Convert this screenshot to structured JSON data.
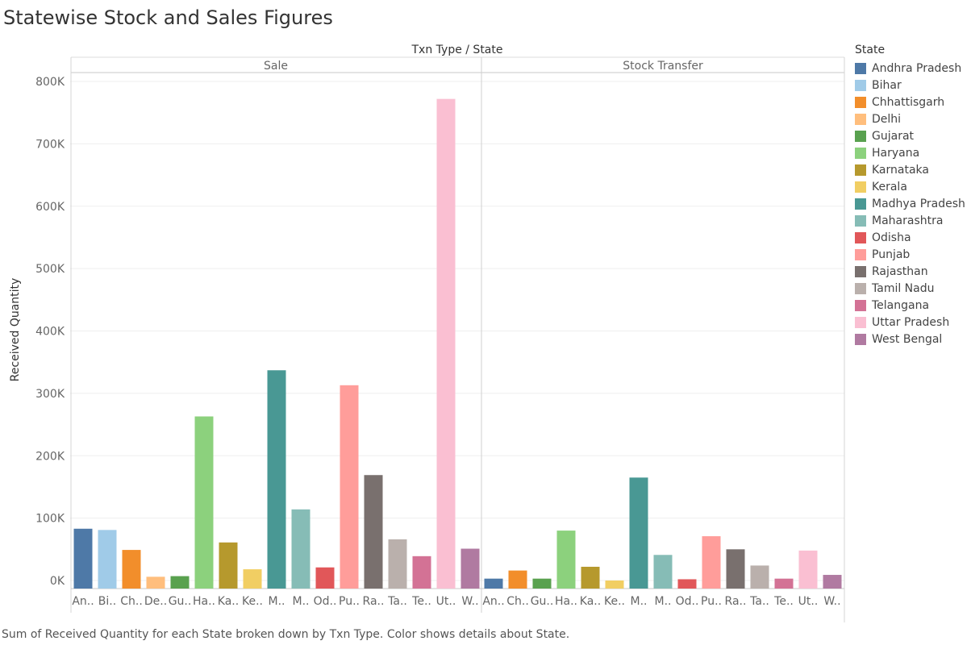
{
  "title": "Statewise Stock and Sales Figures",
  "caption": "Sum of Received Quantity for each State broken down by Txn Type.  Color shows details about State.",
  "legend": {
    "title": "State",
    "items": [
      {
        "label": "Andhra Pradesh",
        "color": "#4e79a7"
      },
      {
        "label": "Bihar",
        "color": "#a0cbe8"
      },
      {
        "label": "Chhattisgarh",
        "color": "#f28e2b"
      },
      {
        "label": "Delhi",
        "color": "#ffbe7d"
      },
      {
        "label": "Gujarat",
        "color": "#59a14f"
      },
      {
        "label": "Haryana",
        "color": "#8cd17d"
      },
      {
        "label": "Karnataka",
        "color": "#b6992d"
      },
      {
        "label": "Kerala",
        "color": "#f1ce63"
      },
      {
        "label": "Madhya Pradesh",
        "color": "#499894"
      },
      {
        "label": "Maharashtra",
        "color": "#86bcb6"
      },
      {
        "label": "Odisha",
        "color": "#e15759"
      },
      {
        "label": "Punjab",
        "color": "#ff9d9a"
      },
      {
        "label": "Rajasthan",
        "color": "#79706e"
      },
      {
        "label": "Tamil Nadu",
        "color": "#bab0ac"
      },
      {
        "label": "Telangana",
        "color": "#d37295"
      },
      {
        "label": "Uttar Pradesh",
        "color": "#fabfd2"
      },
      {
        "label": "West Bengal",
        "color": "#b07aa1"
      }
    ]
  },
  "chart_data": {
    "type": "bar",
    "header_label": "Txn Type  /  State",
    "ylabel": "Received Quantity",
    "ylim": [
      0,
      800000
    ],
    "y_ticks": [
      0,
      100000,
      200000,
      300000,
      400000,
      500000,
      600000,
      700000,
      800000
    ],
    "y_tick_labels": [
      "0K",
      "100K",
      "200K",
      "300K",
      "400K",
      "500K",
      "600K",
      "700K",
      "800K"
    ],
    "gridlines": true,
    "panels": [
      {
        "name": "Sale",
        "categories": [
          "Andhra Pradesh",
          "Bihar",
          "Chhattisgarh",
          "Delhi",
          "Gujarat",
          "Haryana",
          "Karnataka",
          "Kerala",
          "Madhya Pradesh",
          "Maharashtra",
          "Odisha",
          "Punjab",
          "Rajasthan",
          "Tamil Nadu",
          "Telangana",
          "Uttar Pradesh",
          "West Bengal"
        ],
        "tick_labels": [
          "An..",
          "Bi..",
          "Ch..",
          "De..",
          "Gu..",
          "Ha..",
          "Ka..",
          "Ke..",
          "M..",
          "M..",
          "Od..",
          "Pu..",
          "Ra..",
          "Ta..",
          "Te..",
          "Ut..",
          "W.."
        ],
        "values": [
          83000,
          81000,
          49000,
          6000,
          7000,
          263000,
          61000,
          18000,
          337000,
          114000,
          21000,
          313000,
          169000,
          66000,
          39000,
          772000,
          51000
        ]
      },
      {
        "name": "Stock Transfer",
        "categories": [
          "Andhra Pradesh",
          "Chhattisgarh",
          "Gujarat",
          "Haryana",
          "Karnataka",
          "Kerala",
          "Madhya Pradesh",
          "Maharashtra",
          "Odisha",
          "Punjab",
          "Rajasthan",
          "Tamil Nadu",
          "Telangana",
          "Uttar Pradesh",
          "West Bengal"
        ],
        "tick_labels": [
          "An..",
          "Ch..",
          "Gu..",
          "Ha..",
          "Ka..",
          "Ke..",
          "M..",
          "M..",
          "Od..",
          "Pu..",
          "Ra..",
          "Ta..",
          "Te..",
          "Ut..",
          "W.."
        ],
        "values": [
          3000,
          16000,
          3000,
          80000,
          22000,
          0,
          165000,
          41000,
          2000,
          71000,
          50000,
          24000,
          3000,
          48000,
          9000
        ]
      }
    ]
  }
}
